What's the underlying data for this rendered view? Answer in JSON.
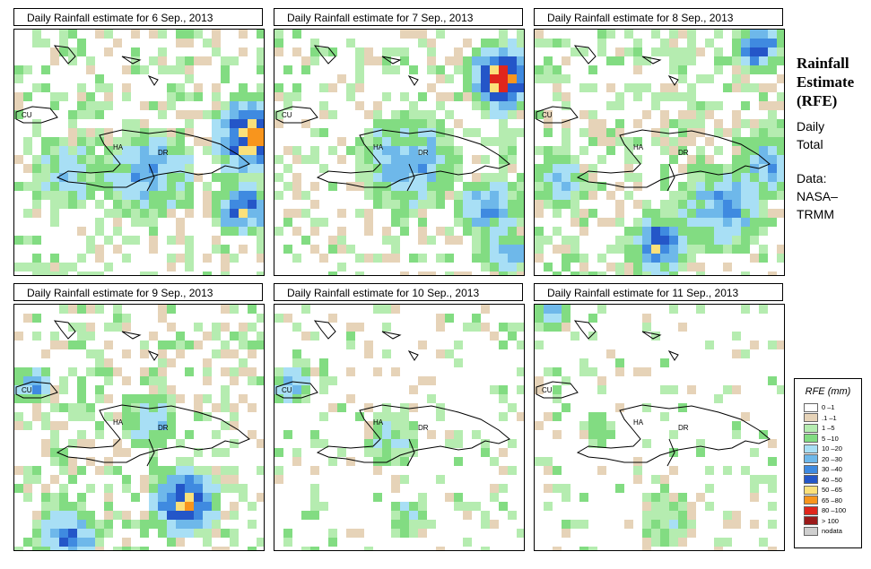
{
  "panels": [
    {
      "title": "Daily Rainfall estimate for  6 Sep., 2013"
    },
    {
      "title": "Daily Rainfall estimate for  7 Sep., 2013"
    },
    {
      "title": "Daily Rainfall estimate for  8 Sep., 2013"
    },
    {
      "title": "Daily Rainfall estimate for  9 Sep., 2013"
    },
    {
      "title": "Daily Rainfall estimate for  10 Sep., 2013"
    },
    {
      "title": "Daily Rainfall estimate for  11 Sep., 2013"
    }
  ],
  "map_labels": {
    "cuba": "CU",
    "haiti": "HA",
    "dominican_republic": "DR"
  },
  "sidebar": {
    "title_line1": "Rainfall",
    "title_line2": "Estimate",
    "title_line3": "(RFE)",
    "daily_line1": "Daily",
    "daily_line2": "Total",
    "data_line1": "Data:",
    "data_line2": "NASA–",
    "data_line3": "TRMM"
  },
  "legend": {
    "title": "RFE (mm)",
    "items": [
      {
        "label": "0 –1",
        "color": "#ffffff"
      },
      {
        "label": ".1 –1",
        "color": "#e6d3b8"
      },
      {
        "label": "1 –5",
        "color": "#b5ecb0"
      },
      {
        "label": "5 –10",
        "color": "#82dc82"
      },
      {
        "label": "10 –20",
        "color": "#a8dff5"
      },
      {
        "label": "20 –30",
        "color": "#6eb8ea"
      },
      {
        "label": "30 –40",
        "color": "#3f8ae0"
      },
      {
        "label": "40 –50",
        "color": "#2456c8"
      },
      {
        "label": "50 –65",
        "color": "#fbe07a"
      },
      {
        "label": "65 –80",
        "color": "#f8951d"
      },
      {
        "label": "80 –100",
        "color": "#e0261c"
      },
      {
        "label": "> 100",
        "color": "#9b1a1a"
      },
      {
        "label": "nodata",
        "color": "#cfcfcf"
      }
    ]
  }
}
